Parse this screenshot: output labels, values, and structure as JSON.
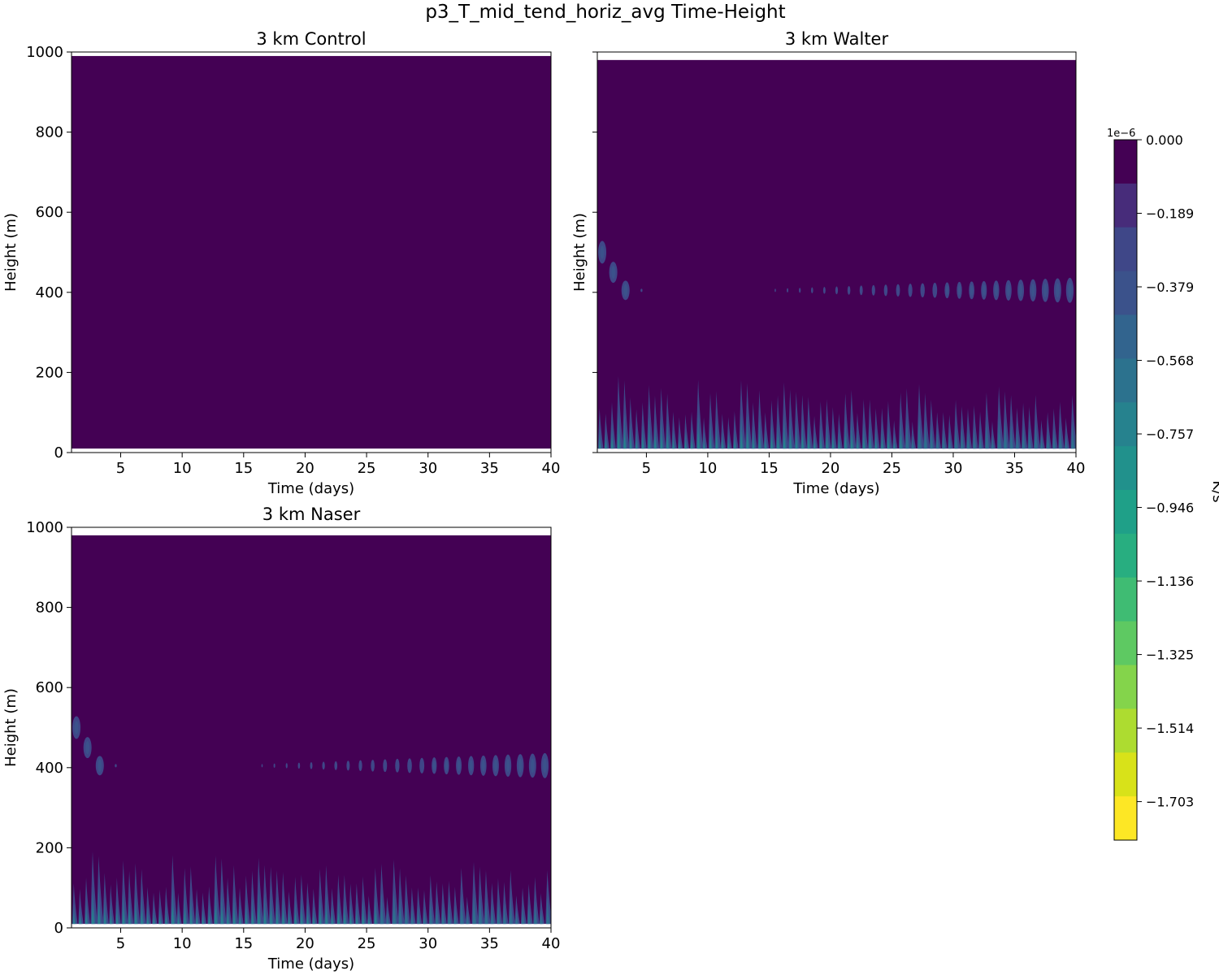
{
  "figure_title": "p3_T_mid_tend_horiz_avg Time-Height",
  "colorbar": {
    "label": "K/s",
    "exponent_label": "1e−6",
    "ticks": [
      "0.000",
      "−0.189",
      "−0.379",
      "−0.568",
      "−0.757",
      "−0.946",
      "−1.136",
      "−1.325",
      "−1.514",
      "−1.703"
    ],
    "colors": [
      "#440154",
      "#472c7a",
      "#3f4788",
      "#3b528b",
      "#32648e",
      "#2c728e",
      "#26828e",
      "#21918c",
      "#1fa088",
      "#28ae80",
      "#3fbc73",
      "#5ec962",
      "#84d44b",
      "#addc30",
      "#d8e219",
      "#fde725"
    ]
  },
  "chart_data": [
    {
      "type": "heatmap",
      "title": "3 km Control",
      "xlabel": "Time (days)",
      "ylabel": "Height (m)",
      "xlim": [
        1,
        40
      ],
      "ylim": [
        0,
        1000
      ],
      "x_ticks": [
        "5",
        "10",
        "15",
        "20",
        "25",
        "30",
        "35",
        "40"
      ],
      "y_ticks": [
        "0",
        "200",
        "400",
        "600",
        "800",
        "1000"
      ],
      "data_height_range": [
        10,
        990
      ],
      "background_value": 0.0,
      "features": []
    },
    {
      "type": "heatmap",
      "title": "3 km Walter",
      "xlabel": "Time (days)",
      "ylabel": "Height (m)",
      "xlim": [
        1,
        40
      ],
      "ylim": [
        0,
        1000
      ],
      "x_ticks": [
        "5",
        "10",
        "15",
        "20",
        "25",
        "30",
        "35",
        "40"
      ],
      "y_ticks": [
        "0",
        "200",
        "400",
        "600",
        "800",
        "1000"
      ],
      "y_tick_labels_shown": false,
      "data_height_range": [
        10,
        980
      ],
      "background_value": 0.0,
      "features": [
        {
          "kind": "near-surface diurnal plumes",
          "days": [
            1,
            40
          ],
          "height_top": 200,
          "min_value": -0.95
        },
        {
          "kind": "early elevated blobs",
          "day_height": [
            [
              1.4,
              500
            ],
            [
              2.3,
              450
            ],
            [
              3.3,
              405
            ]
          ]
        },
        {
          "kind": "periodic band",
          "height": 405,
          "days": [
            15,
            40
          ],
          "min_value": -0.4
        }
      ]
    },
    {
      "type": "heatmap",
      "title": "3 km Naser",
      "xlabel": "Time (days)",
      "ylabel": "Height (m)",
      "xlim": [
        1,
        40
      ],
      "ylim": [
        0,
        1000
      ],
      "x_ticks": [
        "5",
        "10",
        "15",
        "20",
        "25",
        "30",
        "35",
        "40"
      ],
      "y_ticks": [
        "0",
        "200",
        "400",
        "600",
        "800",
        "1000"
      ],
      "data_height_range": [
        10,
        980
      ],
      "background_value": 0.0,
      "features": [
        {
          "kind": "near-surface diurnal plumes",
          "days": [
            1,
            40
          ],
          "height_top": 200,
          "min_value": -0.95
        },
        {
          "kind": "early elevated blobs",
          "day_height": [
            [
              1.4,
              500
            ],
            [
              2.3,
              450
            ],
            [
              3.3,
              405
            ]
          ]
        },
        {
          "kind": "periodic band",
          "height": 405,
          "days": [
            16,
            40
          ],
          "min_value": -0.4
        }
      ]
    }
  ]
}
